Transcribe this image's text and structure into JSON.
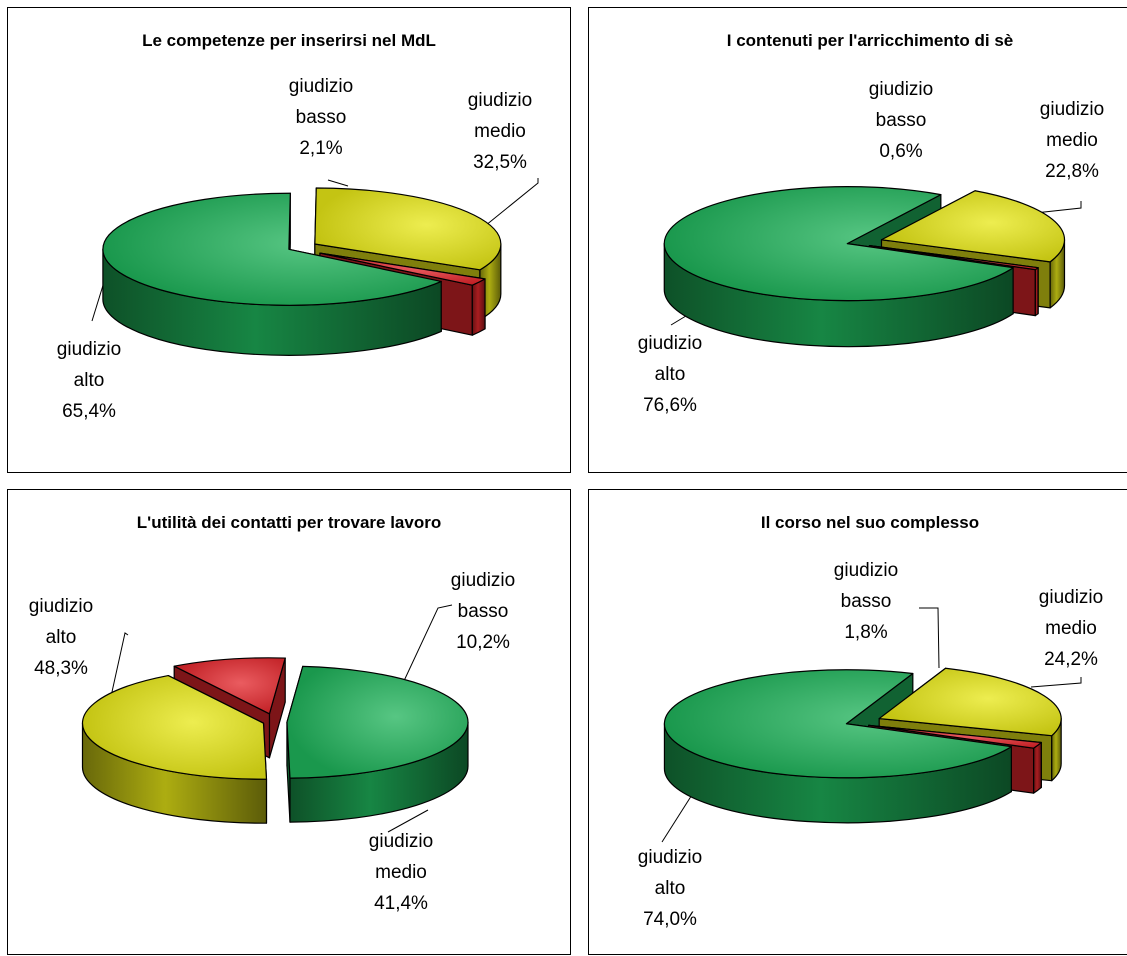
{
  "colors": {
    "giudizio alto": "#1fb35a",
    "giudizio medio": "#e7e716",
    "giudizio basso": "#e3262b"
  },
  "chart_data": [
    {
      "type": "pie",
      "title": "Le competenze per inserirsi nel MdL",
      "slices": [
        {
          "name": "giudizio alto",
          "value": 65.4,
          "line1": "giudizio",
          "line2": "alto",
          "pct": "65,4%"
        },
        {
          "name": "giudizio medio",
          "value": 32.5,
          "line1": "giudizio",
          "line2": "medio",
          "pct": "32,5%"
        },
        {
          "name": "giudizio basso",
          "value": 2.1,
          "line1": "giudizio",
          "line2": "basso",
          "pct": "2,1%"
        }
      ]
    },
    {
      "type": "pie",
      "title": "I contenuti per l'arricchimento di sè",
      "slices": [
        {
          "name": "giudizio alto",
          "value": 76.6,
          "line1": "giudizio",
          "line2": "alto",
          "pct": "76,6%"
        },
        {
          "name": "giudizio medio",
          "value": 22.8,
          "line1": "giudizio",
          "line2": "medio",
          "pct": "22,8%"
        },
        {
          "name": "giudizio basso",
          "value": 0.6,
          "line1": "giudizio",
          "line2": "basso",
          "pct": "0,6%"
        }
      ]
    },
    {
      "type": "pie",
      "title": "L'utilità dei contatti per trovare lavoro",
      "slices": [
        {
          "name": "giudizio alto",
          "value": 48.3,
          "line1": "giudizio",
          "line2": "alto",
          "pct": "48,3%"
        },
        {
          "name": "giudizio medio",
          "value": 41.4,
          "line1": "giudizio",
          "line2": "medio",
          "pct": "41,4%"
        },
        {
          "name": "giudizio basso",
          "value": 10.2,
          "line1": "giudizio",
          "line2": "basso",
          "pct": "10,2%"
        }
      ]
    },
    {
      "type": "pie",
      "title": "Il corso nel suo complesso",
      "slices": [
        {
          "name": "giudizio alto",
          "value": 74.0,
          "line1": "giudizio",
          "line2": "alto",
          "pct": "74,0%"
        },
        {
          "name": "giudizio medio",
          "value": 24.2,
          "line1": "giudizio",
          "line2": "medio",
          "pct": "24,2%"
        },
        {
          "name": "giudizio basso",
          "value": 1.8,
          "line1": "giudizio",
          "line2": "basso",
          "pct": "1,8%"
        }
      ]
    }
  ]
}
